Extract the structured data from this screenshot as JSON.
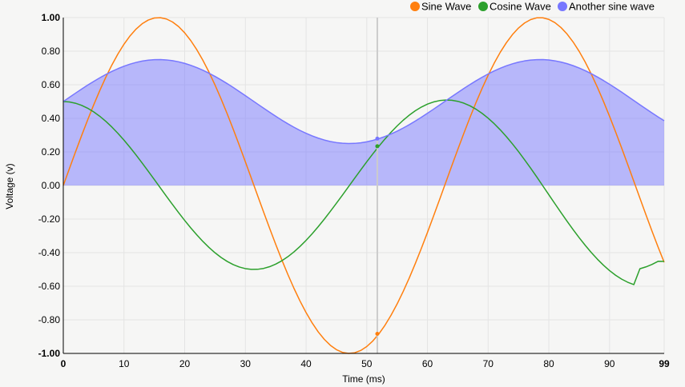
{
  "chart_data": {
    "type": "line",
    "title": "",
    "xlabel": "Time (ms)",
    "ylabel": "Voltage (v)",
    "xlim": [
      0,
      99
    ],
    "ylim": [
      -1,
      1
    ],
    "x_ticks": [
      0,
      10,
      20,
      30,
      40,
      50,
      60,
      70,
      80,
      90,
      99
    ],
    "x_tick_labels": [
      "0",
      "10",
      "20",
      "30",
      "40",
      "50",
      "60",
      "70",
      "80",
      "90",
      "99"
    ],
    "y_ticks": [
      -1,
      -0.8,
      -0.6,
      -0.4,
      -0.2,
      0,
      0.2,
      0.4,
      0.6,
      0.8,
      1
    ],
    "y_tick_labels": [
      "-1.00",
      "-0.80",
      "-0.60",
      "-0.40",
      "-0.20",
      "0.00",
      "0.20",
      "0.40",
      "0.60",
      "0.80",
      "1.00"
    ],
    "grid": true,
    "legend_position": "top-right",
    "hover_x": 52,
    "x": [
      0,
      1,
      2,
      3,
      4,
      5,
      6,
      7,
      8,
      9,
      10,
      11,
      12,
      13,
      14,
      15,
      16,
      17,
      18,
      19,
      20,
      21,
      22,
      23,
      24,
      25,
      26,
      27,
      28,
      29,
      30,
      31,
      32,
      33,
      34,
      35,
      36,
      37,
      38,
      39,
      40,
      41,
      42,
      43,
      44,
      45,
      46,
      47,
      48,
      49,
      50,
      51,
      52,
      53,
      54,
      55,
      56,
      57,
      58,
      59,
      60,
      61,
      62,
      63,
      64,
      65,
      66,
      67,
      68,
      69,
      70,
      71,
      72,
      73,
      74,
      75,
      76,
      77,
      78,
      79,
      80,
      81,
      82,
      83,
      84,
      85,
      86,
      87,
      88,
      89,
      90,
      91,
      92,
      93,
      94,
      95,
      96,
      97,
      98,
      99
    ],
    "series": [
      {
        "name": "Sine Wave",
        "color": "#ff7f0e",
        "area": false,
        "values": [
          0,
          0.0998,
          0.1987,
          0.2955,
          0.3894,
          0.4794,
          0.5646,
          0.6442,
          0.7174,
          0.7833,
          0.8415,
          0.8912,
          0.932,
          0.9636,
          0.9854,
          0.9975,
          0.9996,
          0.9917,
          0.9738,
          0.9463,
          0.9093,
          0.8632,
          0.8085,
          0.7457,
          0.6755,
          0.5985,
          0.5155,
          0.4274,
          0.335,
          0.2392,
          0.1411,
          0.0416,
          -0.0584,
          -0.1577,
          -0.2555,
          -0.3508,
          -0.4425,
          -0.5298,
          -0.6119,
          -0.6878,
          -0.7568,
          -0.8183,
          -0.8716,
          -0.9162,
          -0.9516,
          -0.9775,
          -0.9937,
          -0.9999,
          -0.9962,
          -0.9825,
          -0.9589,
          -0.9258,
          -0.8835,
          -0.8323,
          -0.7728,
          -0.7055,
          -0.6313,
          -0.5507,
          -0.4646,
          -0.3739,
          -0.2794,
          -0.1822,
          -0.0831,
          0.0168,
          0.1165,
          0.2151,
          0.3115,
          0.4048,
          0.4941,
          0.5784,
          0.657,
          0.729,
          0.7937,
          0.8504,
          0.8987,
          0.938,
          0.9679,
          0.9882,
          0.9985,
          0.9989,
          0.9894,
          0.9699,
          0.9407,
          0.9022,
          0.8546,
          0.7985,
          0.7344,
          0.663,
          0.5849,
          0.501,
          0.4121,
          0.319,
          0.2229,
          0.1245,
          0.0248,
          -0.0752,
          -0.1743,
          -0.2718,
          -0.3665,
          -0.4575
        ]
      },
      {
        "name": "Cosine Wave",
        "color": "#2ca02c",
        "area": false,
        "values": [
          0.5,
          0.4975,
          0.49,
          0.4777,
          0.4605,
          0.4388,
          0.4127,
          0.3824,
          0.3484,
          0.3108,
          0.2702,
          0.2268,
          0.1812,
          0.1338,
          0.085,
          0.0354,
          -0.0146,
          -0.0644,
          -0.1136,
          -0.1617,
          -0.2081,
          -0.2524,
          -0.2943,
          -0.3332,
          -0.3687,
          -0.4006,
          -0.4285,
          -0.4521,
          -0.4711,
          -0.4854,
          -0.495,
          -0.4996,
          -0.4991,
          -0.4938,
          -0.4834,
          -0.4682,
          -0.4484,
          -0.424,
          -0.3954,
          -0.3629,
          -0.3268,
          -0.2874,
          -0.2452,
          -0.2006,
          -0.1539,
          -0.1058,
          -0.0566,
          -0.007,
          0.0429,
          0.0925,
          0.1412,
          0.1884,
          0.2339,
          0.277,
          0.3174,
          0.3547,
          0.3887,
          0.4189,
          0.4451,
          0.4671,
          0.4846,
          0.4975,
          0.5057,
          0.5091,
          0.5077,
          0.5014,
          0.4904,
          0.4747,
          0.4545,
          0.4298,
          0.4009,
          0.368,
          0.3313,
          0.2912,
          0.248,
          0.2019,
          0.1535,
          0.1032,
          0.0513,
          -0.0017,
          -0.0551,
          -0.1084,
          -0.1611,
          -0.2128,
          -0.2629,
          -0.311,
          -0.3566,
          -0.3994,
          -0.4389,
          -0.4748,
          -0.5067,
          -0.5344,
          -0.5577,
          -0.5763,
          -0.5901,
          -0.4958,
          -0.4846,
          -0.4698,
          -0.4515,
          -0.4519
        ]
      },
      {
        "name": "Another sine wave",
        "color": "#7777ff",
        "area": true,
        "values": [
          0.5,
          0.5249,
          0.5497,
          0.5739,
          0.5974,
          0.6198,
          0.6412,
          0.6611,
          0.6794,
          0.6958,
          0.7104,
          0.7228,
          0.733,
          0.7409,
          0.7464,
          0.7494,
          0.7499,
          0.7479,
          0.7435,
          0.7366,
          0.7273,
          0.7158,
          0.7021,
          0.6864,
          0.6689,
          0.6496,
          0.6289,
          0.6069,
          0.5838,
          0.5598,
          0.5353,
          0.5104,
          0.4854,
          0.4606,
          0.4361,
          0.4123,
          0.3894,
          0.3675,
          0.347,
          0.328,
          0.3108,
          0.2954,
          0.2821,
          0.271,
          0.2621,
          0.2556,
          0.2516,
          0.25,
          0.2509,
          0.2544,
          0.2603,
          0.2686,
          0.2791,
          0.2919,
          0.3068,
          0.3236,
          0.3422,
          0.3623,
          0.3838,
          0.4065,
          0.4302,
          0.4545,
          0.4792,
          0.5042,
          0.5291,
          0.5538,
          0.5779,
          0.6012,
          0.6235,
          0.6446,
          0.6643,
          0.6823,
          0.6984,
          0.7126,
          0.7247,
          0.7345,
          0.742,
          0.747,
          0.7496,
          0.7497,
          0.7474,
          0.7425,
          0.7352,
          0.7256,
          0.7137,
          0.6996,
          0.6836,
          0.6658,
          0.6462,
          0.6252,
          0.603,
          0.5798,
          0.5557,
          0.5311,
          0.5062,
          0.4812,
          0.4564,
          0.4321,
          0.4084,
          0.3856
        ]
      }
    ]
  }
}
